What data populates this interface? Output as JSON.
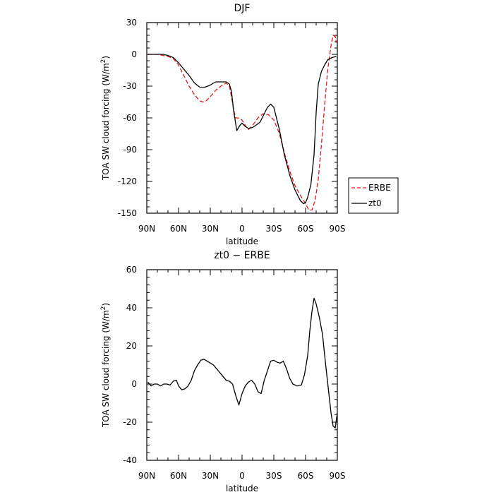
{
  "chart_data": [
    {
      "type": "line",
      "title": "DJF",
      "xlabel": "latitude",
      "ylabel": "TOA SW cloud forcing (W/m",
      "ylabel_sup": "2",
      "ylabel_end": ")",
      "xlim": [
        90,
        -90
      ],
      "ylim": [
        -150,
        30
      ],
      "xticks": [
        90,
        60,
        30,
        0,
        -30,
        -60,
        -90
      ],
      "xtick_labels": [
        "90N",
        "60N",
        "30N",
        "0",
        "30S",
        "60S",
        "90S"
      ],
      "yticks": [
        30,
        0,
        -30,
        -60,
        -90,
        -120,
        -150
      ],
      "ytick_labels": [
        "30",
        "0",
        "-30",
        "-60",
        "-90",
        "-120",
        "-150"
      ],
      "legend_position": "right",
      "series": [
        {
          "name": "ERBE",
          "color": "#e41a1c",
          "dash": "dashed",
          "points": [
            [
              89,
              0
            ],
            [
              85,
              0
            ],
            [
              80,
              0
            ],
            [
              75,
              -1
            ],
            [
              70,
              -2
            ],
            [
              65,
              -4
            ],
            [
              60,
              -10
            ],
            [
              55,
              -20
            ],
            [
              50,
              -30
            ],
            [
              45,
              -38
            ],
            [
              40,
              -44
            ],
            [
              37,
              -45
            ],
            [
              34,
              -44
            ],
            [
              30,
              -40
            ],
            [
              25,
              -34
            ],
            [
              20,
              -30
            ],
            [
              15,
              -27
            ],
            [
              12,
              -30
            ],
            [
              10,
              -40
            ],
            [
              8,
              -52
            ],
            [
              6,
              -60
            ],
            [
              4,
              -60
            ],
            [
              2,
              -61
            ],
            [
              0,
              -62
            ],
            [
              -3,
              -67
            ],
            [
              -6,
              -71
            ],
            [
              -10,
              -67
            ],
            [
              -15,
              -60
            ],
            [
              -20,
              -56
            ],
            [
              -25,
              -57
            ],
            [
              -30,
              -62
            ],
            [
              -35,
              -74
            ],
            [
              -40,
              -93
            ],
            [
              -45,
              -110
            ],
            [
              -50,
              -124
            ],
            [
              -55,
              -133
            ],
            [
              -60,
              -141
            ],
            [
              -63,
              -147
            ],
            [
              -66,
              -147
            ],
            [
              -69,
              -138
            ],
            [
              -72,
              -118
            ],
            [
              -75,
              -85
            ],
            [
              -78,
              -48
            ],
            [
              -81,
              -14
            ],
            [
              -84,
              8
            ],
            [
              -86,
              18
            ],
            [
              -88,
              17
            ],
            [
              -89,
              11
            ]
          ]
        },
        {
          "name": "zt0",
          "color": "#000000",
          "dash": "solid",
          "points": [
            [
              89,
              0
            ],
            [
              85,
              0
            ],
            [
              80,
              0
            ],
            [
              75,
              0
            ],
            [
              70,
              -1
            ],
            [
              65,
              -3
            ],
            [
              60,
              -8
            ],
            [
              55,
              -14
            ],
            [
              50,
              -20
            ],
            [
              45,
              -27
            ],
            [
              40,
              -31
            ],
            [
              35,
              -31
            ],
            [
              30,
              -29
            ],
            [
              25,
              -26
            ],
            [
              20,
              -26
            ],
            [
              15,
              -26
            ],
            [
              12,
              -28
            ],
            [
              10,
              -35
            ],
            [
              8,
              -53
            ],
            [
              5,
              -72
            ],
            [
              2,
              -67
            ],
            [
              0,
              -65
            ],
            [
              -3,
              -68
            ],
            [
              -6,
              -70
            ],
            [
              -10,
              -69
            ],
            [
              -13,
              -67
            ],
            [
              -17,
              -64
            ],
            [
              -20,
              -58
            ],
            [
              -24,
              -50
            ],
            [
              -27,
              -47
            ],
            [
              -30,
              -50
            ],
            [
              -35,
              -70
            ],
            [
              -40,
              -95
            ],
            [
              -45,
              -114
            ],
            [
              -50,
              -128
            ],
            [
              -55,
              -138
            ],
            [
              -58,
              -141
            ],
            [
              -60,
              -140
            ],
            [
              -62,
              -135
            ],
            [
              -65,
              -123
            ],
            [
              -68,
              -95
            ],
            [
              -70,
              -55
            ],
            [
              -72,
              -28
            ],
            [
              -75,
              -16
            ],
            [
              -78,
              -10
            ],
            [
              -81,
              -5
            ],
            [
              -85,
              -3
            ],
            [
              -89,
              -2
            ]
          ]
        }
      ]
    },
    {
      "type": "line",
      "title": "zt0 − ERBE",
      "xlabel": "latitude",
      "ylabel": "TOA SW cloud forcing (W/m",
      "ylabel_sup": "2",
      "ylabel_end": ")",
      "xlim": [
        90,
        -90
      ],
      "ylim": [
        -40,
        60
      ],
      "xticks": [
        90,
        60,
        30,
        0,
        -30,
        -60,
        -90
      ],
      "xtick_labels": [
        "90N",
        "60N",
        "30N",
        "0",
        "30S",
        "60S",
        "90S"
      ],
      "yticks": [
        60,
        40,
        20,
        0,
        -20,
        -40
      ],
      "ytick_labels": [
        "60",
        "40",
        "20",
        "0",
        "-20",
        "-40"
      ],
      "series": [
        {
          "name": "",
          "color": "#000000",
          "dash": "solid",
          "points": [
            [
              89,
              1
            ],
            [
              86,
              -1
            ],
            [
              83,
              0
            ],
            [
              80,
              0
            ],
            [
              77,
              -1
            ],
            [
              74,
              0
            ],
            [
              71,
              0
            ],
            [
              68,
              -0.5
            ],
            [
              65,
              1.5
            ],
            [
              62,
              2
            ],
            [
              60,
              -1
            ],
            [
              57,
              -3
            ],
            [
              54,
              -2.5
            ],
            [
              51,
              -1
            ],
            [
              48,
              2
            ],
            [
              45,
              7
            ],
            [
              42,
              10
            ],
            [
              39,
              12.5
            ],
            [
              36,
              13
            ],
            [
              33,
              12
            ],
            [
              30,
              11
            ],
            [
              27,
              10
            ],
            [
              24,
              8
            ],
            [
              21,
              6
            ],
            [
              18,
              4
            ],
            [
              15,
              2
            ],
            [
              12,
              1.5
            ],
            [
              9,
              0
            ],
            [
              6,
              -6
            ],
            [
              3,
              -11
            ],
            [
              0,
              -5
            ],
            [
              -3,
              -1
            ],
            [
              -6,
              1
            ],
            [
              -9,
              2
            ],
            [
              -12,
              0
            ],
            [
              -15,
              -4
            ],
            [
              -18,
              -5
            ],
            [
              -21,
              2
            ],
            [
              -24,
              7
            ],
            [
              -27,
              12
            ],
            [
              -30,
              12.5
            ],
            [
              -33,
              11.5
            ],
            [
              -36,
              11
            ],
            [
              -39,
              12
            ],
            [
              -42,
              8
            ],
            [
              -45,
              3
            ],
            [
              -48,
              0
            ],
            [
              -52,
              -1
            ],
            [
              -56,
              -0.5
            ],
            [
              -59,
              5
            ],
            [
              -62,
              15
            ],
            [
              -64,
              28
            ],
            [
              -66,
              38
            ],
            [
              -68,
              45
            ],
            [
              -70,
              42
            ],
            [
              -73,
              35
            ],
            [
              -76,
              26
            ],
            [
              -79,
              10
            ],
            [
              -82,
              -5
            ],
            [
              -84,
              -15
            ],
            [
              -86,
              -22
            ],
            [
              -88,
              -23
            ],
            [
              -90,
              -15
            ]
          ]
        }
      ]
    }
  ]
}
